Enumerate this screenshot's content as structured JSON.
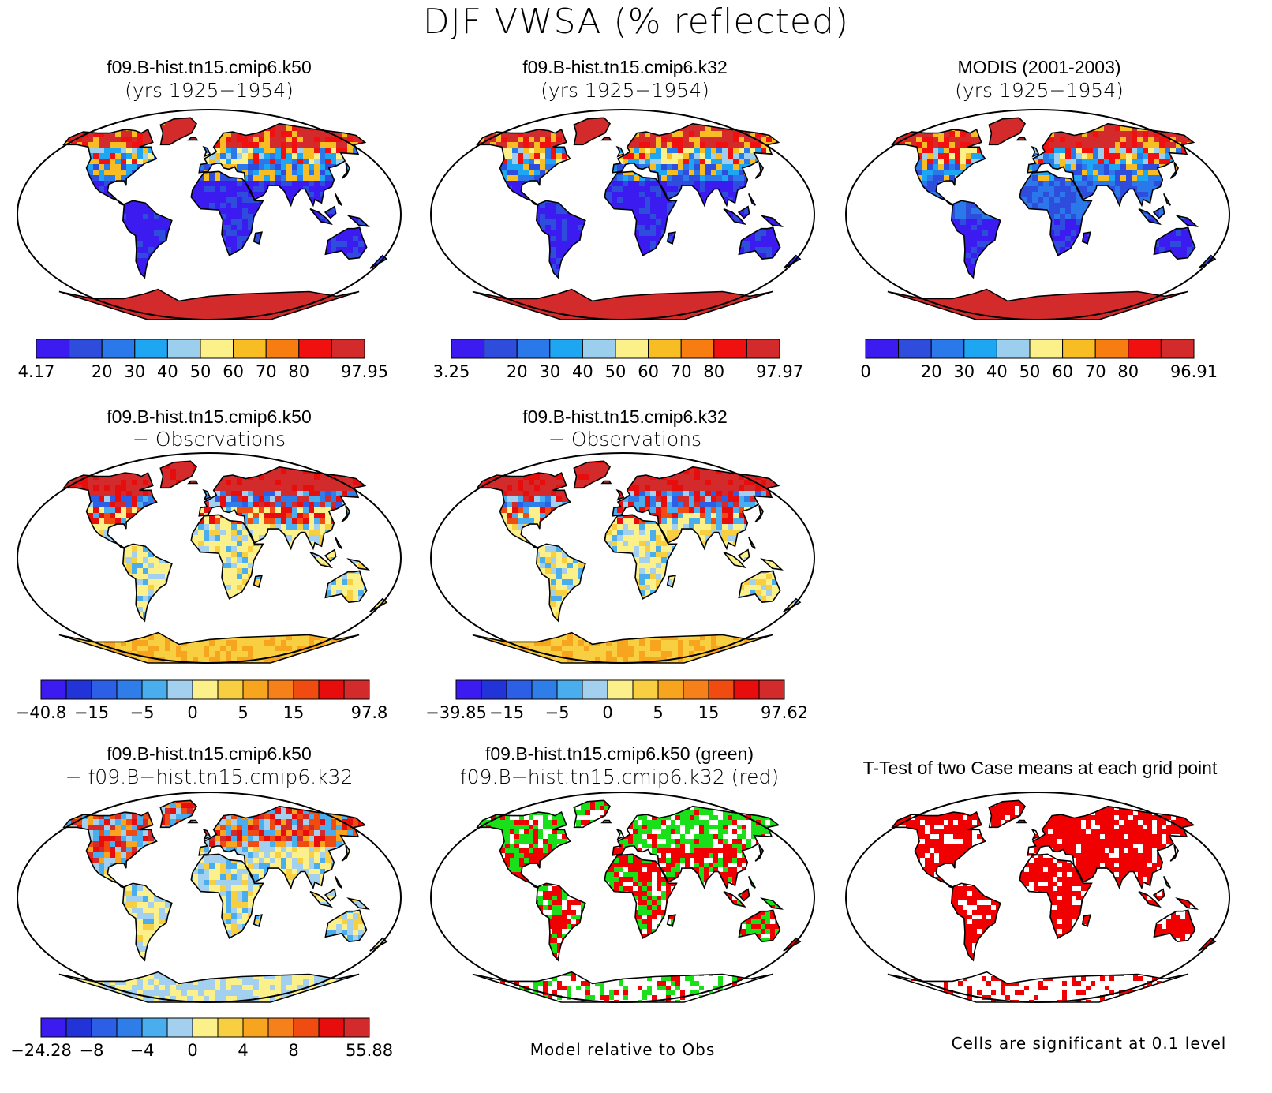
{
  "main_title": "DJF VWSA (% reflected)",
  "colors": {
    "abs_palette": [
      "#3b1bf0",
      "#2f4ddd",
      "#2a78ea",
      "#1fa6f2",
      "#9ccfee",
      "#fbf08a",
      "#f8bd22",
      "#f77d10",
      "#f01010",
      "#d32b2b"
    ],
    "diff_palette": [
      "#3b1bf0",
      "#2233d8",
      "#2d5ee6",
      "#2f7de8",
      "#4aaeee",
      "#a3d0ee",
      "#fbf08a",
      "#f8cf40",
      "#f7a41f",
      "#f6801a",
      "#f04b10",
      "#e80d0d",
      "#d32b2b"
    ],
    "land_outline": "#000000",
    "green": "#19e019",
    "red": "#f00000"
  },
  "panels": {
    "p1": {
      "title": "f09.B-hist.tn15.cmip6.k50",
      "subtitle": "(yrs 1925−1954)",
      "colorbar_labels": [
        "4.17",
        "20",
        "30",
        "40",
        "50",
        "60",
        "70",
        "80",
        "97.95"
      ]
    },
    "p2": {
      "title": "f09.B-hist.tn15.cmip6.k32",
      "subtitle": "(yrs 1925−1954)",
      "colorbar_labels": [
        "3.25",
        "20",
        "30",
        "40",
        "50",
        "60",
        "70",
        "80",
        "97.97"
      ]
    },
    "p3": {
      "title": "MODIS (2001-2003)",
      "subtitle": "(yrs 1925−1954)",
      "colorbar_labels": [
        "0",
        "20",
        "30",
        "40",
        "50",
        "60",
        "70",
        "80",
        "96.91"
      ]
    },
    "p4": {
      "title": "f09.B-hist.tn15.cmip6.k50",
      "subtitle": "− Observations",
      "colorbar_labels": [
        "−40.8",
        "−15",
        "−5",
        "0",
        "5",
        "15",
        "97.8"
      ]
    },
    "p5": {
      "title": "f09.B-hist.tn15.cmip6.k32",
      "subtitle": "− Observations",
      "colorbar_labels": [
        "−39.85",
        "−15",
        "−5",
        "0",
        "5",
        "15",
        "97.62"
      ]
    },
    "p7": {
      "title": "f09.B-hist.tn15.cmip6.k50",
      "subtitle": "− f09.B−hist.tn15.cmip6.k32",
      "colorbar_labels": [
        "−24.28",
        "−8",
        "−4",
        "0",
        "4",
        "8",
        "55.88"
      ]
    },
    "p8": {
      "title": "f09.B-hist.tn15.cmip6.k50 (green)",
      "subtitle": "f09.B−hist.tn15.cmip6.k32 (red)",
      "note": "Model relative to Obs"
    },
    "p9": {
      "title": "T-Test of two Case means at each grid point",
      "note": "Cells are significant at 0.1 level"
    }
  }
}
